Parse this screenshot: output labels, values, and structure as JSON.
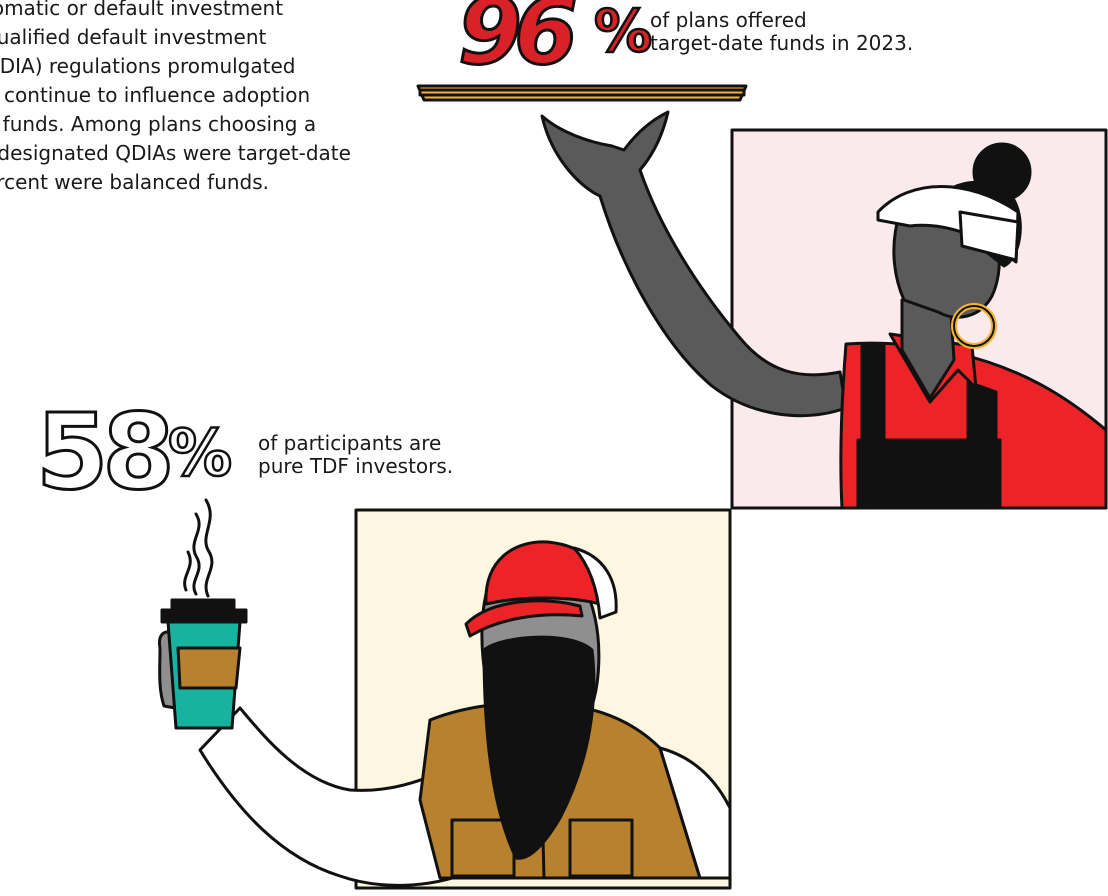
{
  "intro": {
    "lines": [
      "tomatic or default investment",
      "qualified default investment",
      "QDIA) regulations promulgated",
      "A continue to influence adoption",
      "e funds. Among plans choosing a",
      "f designated QDIAs were target-date",
      "ercent were balanced funds."
    ]
  },
  "stat_plans": {
    "number": "96",
    "symbol": "%",
    "caption_lines": [
      "of plans offered",
      "target-date funds in 2023."
    ]
  },
  "stat_participants": {
    "number": "58",
    "symbol": "%",
    "caption_lines": [
      "of participants are",
      "pure TDF investors."
    ]
  },
  "colors": {
    "accent_red": "#d92128",
    "tray_gold": "#f5b335",
    "panel_pink": "#fbeaec",
    "panel_cream": "#fdf6e0",
    "cup_teal": "#17b3a0",
    "vest_brown": "#b8812e",
    "skin_dark": "#5a5a5a",
    "skin_gray": "#8f8f8f"
  },
  "illustrations": [
    "server-with-tray-illustration",
    "man-with-coffee-illustration"
  ]
}
